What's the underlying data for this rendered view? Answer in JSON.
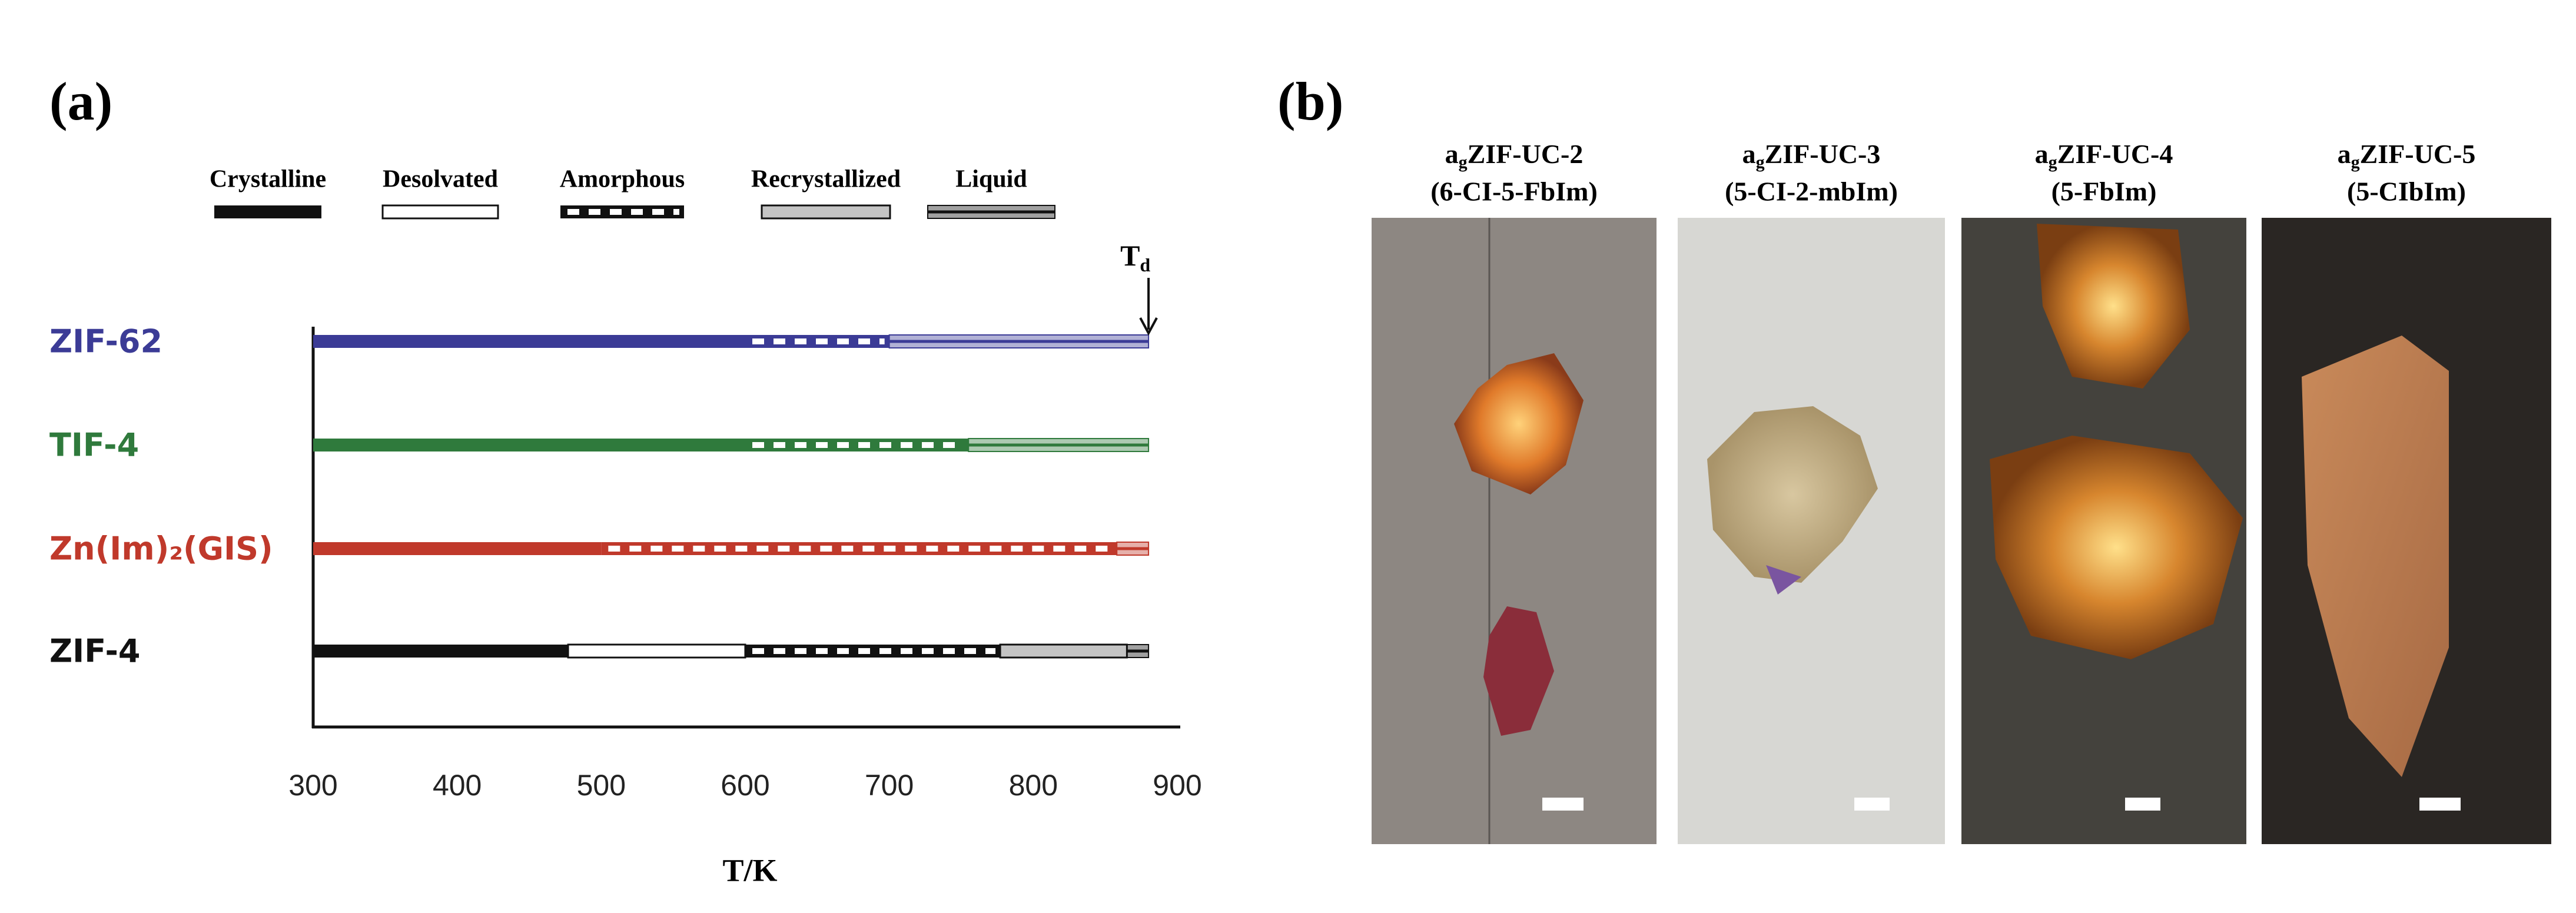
{
  "chart_data": {
    "type": "phase",
    "panel_label": "(a)",
    "xlabel": "T/K",
    "xlim": [
      300,
      900
    ],
    "xticks": [
      300,
      400,
      500,
      600,
      700,
      800,
      900
    ],
    "states": [
      "Crystalline",
      "Desolvated",
      "Amorphous",
      "Recrystallized",
      "Liquid"
    ],
    "legend_color": "#111111",
    "td_marker": {
      "label": "T",
      "subscript": "d",
      "x": 880
    },
    "series": [
      {
        "name": "ZIF-62",
        "color": "#3b3b96",
        "starts": [
          300,
          null,
          600,
          null,
          700
        ],
        "ends": [
          600,
          null,
          700,
          null,
          880
        ]
      },
      {
        "name": "TIF-4",
        "color": "#2f7a3c",
        "starts": [
          300,
          null,
          600,
          null,
          755
        ],
        "ends": [
          600,
          null,
          755,
          null,
          880
        ]
      },
      {
        "name": "Zn(Im)₂(GIS)",
        "color": "#c0392b",
        "starts": [
          300,
          null,
          500,
          null,
          858
        ],
        "ends": [
          500,
          null,
          858,
          null,
          880
        ]
      },
      {
        "name": "ZIF-4",
        "color": "#111111",
        "starts": [
          300,
          477,
          600,
          777,
          865
        ],
        "ends": [
          477,
          600,
          777,
          865,
          880
        ]
      }
    ]
  },
  "images_panel": {
    "panel_label": "(b)",
    "images": [
      {
        "prefix": "a",
        "subscript": "g",
        "name": "ZIF-UC-2",
        "ligand": "(6-CI-5-FbIm)"
      },
      {
        "prefix": "a",
        "subscript": "g",
        "name": "ZIF-UC-3",
        "ligand": "(5-CI-2-mbIm)"
      },
      {
        "prefix": "a",
        "subscript": "g",
        "name": "ZIF-UC-4",
        "ligand": "(5-FbIm)"
      },
      {
        "prefix": "a",
        "subscript": "g",
        "name": "ZIF-UC-5",
        "ligand": "(5-CIbIm)"
      }
    ]
  }
}
